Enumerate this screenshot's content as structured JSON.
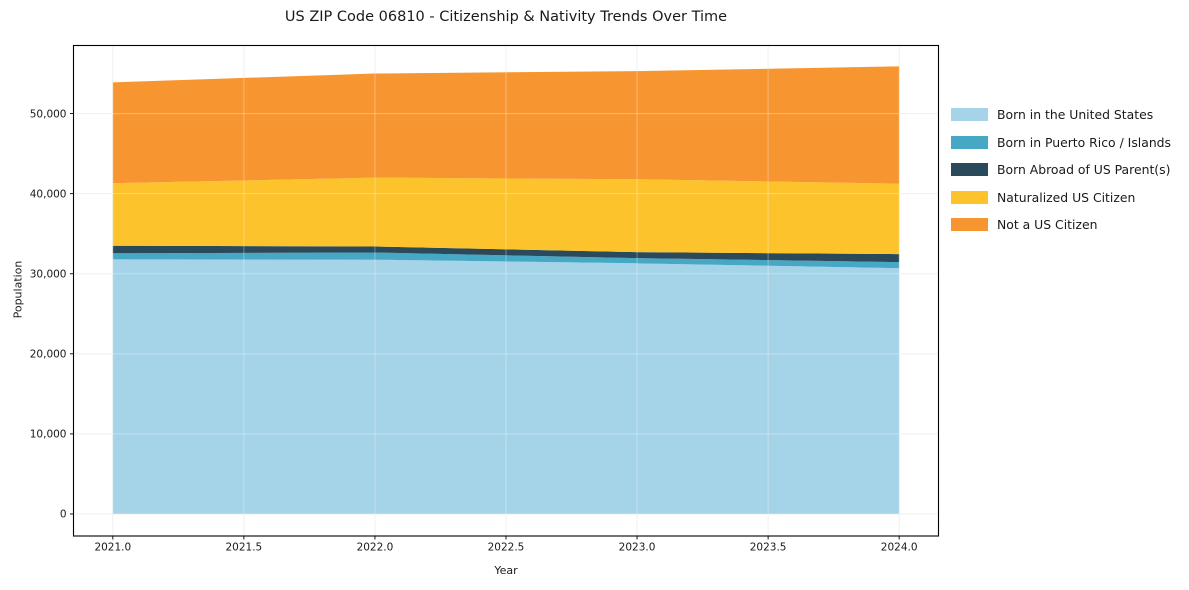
{
  "title": "US ZIP Code 06810 - Citizenship & Nativity Trends Over Time",
  "chart_data": {
    "type": "area",
    "stacked": true,
    "title": "US ZIP Code 06810 - Citizenship & Nativity Trends Over Time",
    "xlabel": "Year",
    "ylabel": "Population",
    "x": [
      2021,
      2022,
      2023,
      2024
    ],
    "series": [
      {
        "name": "Born in the United States",
        "color": "#a5d3e8",
        "values": [
          31800,
          31750,
          31300,
          30700
        ]
      },
      {
        "name": "Born in Puerto Rico / Islands",
        "color": "#46a8c5",
        "values": [
          750,
          900,
          650,
          750
        ]
      },
      {
        "name": "Born Abroad of US Parent(s)",
        "color": "#2a4a5c",
        "values": [
          950,
          750,
          750,
          1000
        ]
      },
      {
        "name": "Naturalized US Citizen",
        "color": "#fcc32d",
        "values": [
          7800,
          8600,
          9100,
          8800
        ]
      },
      {
        "name": "Not a US Citizen",
        "color": "#f79631",
        "values": [
          12600,
          13000,
          13500,
          14650
        ]
      }
    ],
    "totals": [
      53900,
      55000,
      55300,
      55900
    ],
    "xticks": [
      2021.0,
      2021.5,
      2022.0,
      2022.5,
      2023.0,
      2023.5,
      2024.0
    ],
    "xtick_labels": [
      "2021.0",
      "2021.5",
      "2022.0",
      "2022.5",
      "2023.0",
      "2023.5",
      "2024.0"
    ],
    "yticks": [
      0,
      10000,
      20000,
      30000,
      40000,
      50000
    ],
    "ytick_labels": [
      "0",
      "10,000",
      "20,000",
      "30,000",
      "40,000",
      "50,000"
    ],
    "xlim": [
      2020.85,
      2024.15
    ],
    "ylim": [
      -2750,
      58500
    ],
    "grid": true,
    "legend_position": "outside-right"
  },
  "colors": {
    "grid_under": "#ebebeb",
    "grid_over": "rgba(255,255,255,0.32)",
    "spine": "#000000",
    "text": "#1a1a1a"
  }
}
